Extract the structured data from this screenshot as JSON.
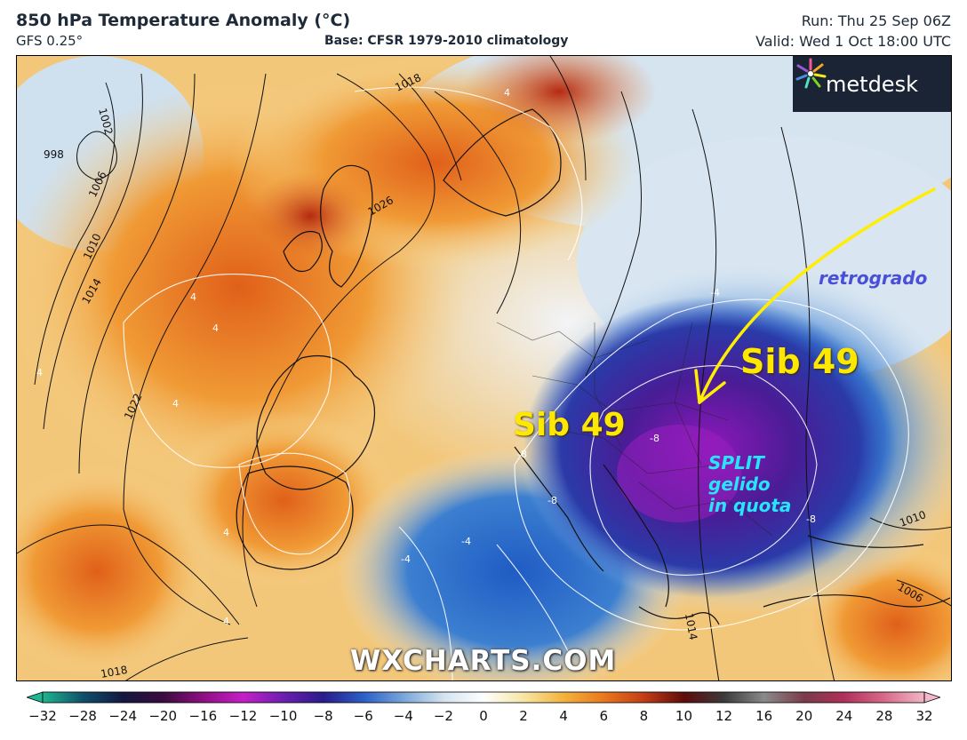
{
  "header": {
    "title": "850 hPa Temperature Anomaly (°C)",
    "model": "GFS 0.25°",
    "base": "Base: CFSR 1979-2010 climatology",
    "run": "Run: Thu 25 Sep 06Z",
    "valid": "Valid: Wed 1 Oct 18:00 UTC"
  },
  "logo": {
    "text": "metdesk",
    "icon": "flower-icon"
  },
  "watermark": "WXCHARTS.COM",
  "annotations": {
    "sib_west": "Sib 49",
    "sib_east": "Sib 49",
    "retrogrado": "retrogrado",
    "split": "SPLIT\ngelido\nin quota"
  },
  "isobars": [
    {
      "label": "998"
    },
    {
      "label": "1002"
    },
    {
      "label": "1006"
    },
    {
      "label": "1010"
    },
    {
      "label": "1014"
    },
    {
      "label": "1018"
    },
    {
      "label": "1022"
    },
    {
      "label": "1026"
    },
    {
      "label": "1018"
    },
    {
      "label": "1014"
    },
    {
      "label": "1010"
    },
    {
      "label": "1006"
    }
  ],
  "anomaly_labels": [
    "4",
    "4",
    "4",
    "4",
    "4",
    "4",
    "4",
    "-4",
    "-4",
    "-4",
    "-8",
    "-8",
    "-8",
    "-8"
  ],
  "colorbar": {
    "ticks": [
      "−32",
      "−28",
      "−24",
      "−20",
      "−16",
      "−12",
      "−10",
      "−8",
      "−6",
      "−4",
      "−2",
      "0",
      "2",
      "4",
      "6",
      "8",
      "10",
      "12",
      "16",
      "20",
      "24",
      "28",
      "32"
    ],
    "colors": [
      "#1fb58f",
      "#0f4f6a",
      "#14173f",
      "#3a0b3e",
      "#8e0f82",
      "#c41fc6",
      "#6b1fb0",
      "#2a1b8a",
      "#2b5fc7",
      "#7aa6d9",
      "#d4e4f0",
      "#ffffff",
      "#f6e6a4",
      "#f4b23c",
      "#e8781e",
      "#c23d16",
      "#5e0b0b",
      "#3b3b3b",
      "#8a8a8a",
      "#7a3b4a",
      "#b0305a",
      "#d86a8a",
      "#f2b7c8"
    ]
  },
  "arrow": {
    "color": "#ffee00"
  }
}
